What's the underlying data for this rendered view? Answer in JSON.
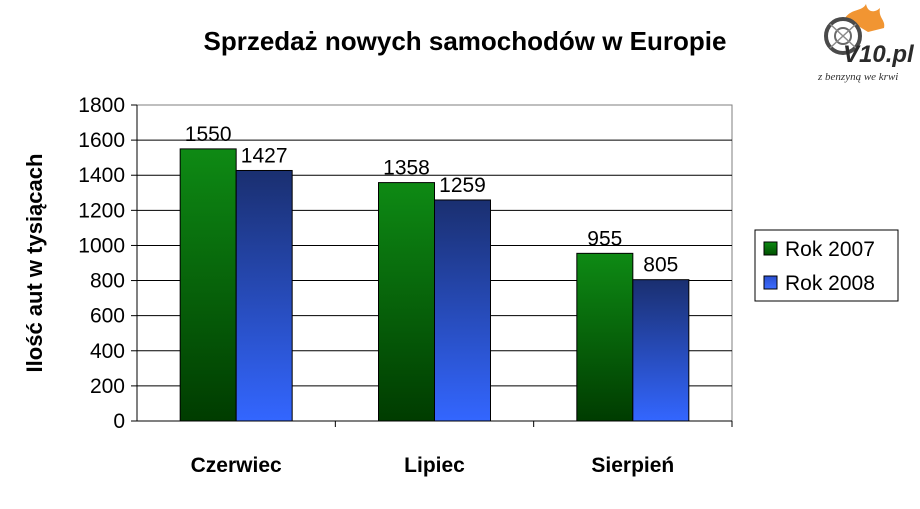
{
  "logo": {
    "text": "V10.pl",
    "tagline": "z benzyną we krwi"
  },
  "chart_data": {
    "type": "bar",
    "title": "Sprzedaż nowych samochodów w Europie",
    "xlabel": "",
    "ylabel": "Ilość aut w tysiącach",
    "categories": [
      "Czerwiec",
      "Lipiec",
      "Sierpień"
    ],
    "series": [
      {
        "name": "Rok 2007",
        "values": [
          1550,
          1358,
          955
        ],
        "color": "#0b7a0b"
      },
      {
        "name": "Rok 2008",
        "values": [
          1427,
          1259,
          805
        ],
        "color": "#2f5fe0"
      }
    ],
    "ylim": [
      0,
      1800
    ],
    "yticks": [
      0,
      200,
      400,
      600,
      800,
      1000,
      1200,
      1400,
      1600,
      1800
    ],
    "grid": true,
    "legend_position": "right",
    "data_labels": true
  }
}
